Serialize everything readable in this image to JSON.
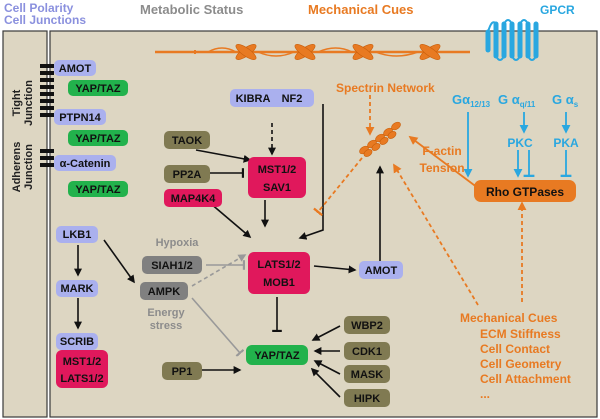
{
  "header": {
    "cell_polarity": "Cell Polarity",
    "cell_junctions": "Cell Junctions",
    "metabolic_status": "Metabolic Status",
    "mechanical_cues": "Mechanical Cues",
    "gpcr": "GPCR"
  },
  "junctions": {
    "tight_line1": "Tight",
    "tight_line2": "Junction",
    "adherens_line1": "Adherens",
    "adherens_line2": "Junction"
  },
  "nodes": {
    "amot_top": "AMOT",
    "yaptaz_1": "YAP/TAZ",
    "ptpn14": "PTPN14",
    "yaptaz_2": "YAP/TAZ",
    "alpha_catenin": "α-Catenin",
    "yaptaz_3": "YAP/TAZ",
    "lkb1": "LKB1",
    "mark": "MARK",
    "scrib": "SCRIB",
    "mst12_left": "MST1/2",
    "lats12_left": "LATS1/2",
    "taok": "TAOK",
    "kibra": "KIBRA",
    "nf2": "NF2",
    "pp2a": "PP2A",
    "mst12_center": "MST1/2",
    "sav1": "SAV1",
    "map4k4": "MAP4K4",
    "siah12": "SIAH1/2",
    "lats12_center": "LATS1/2",
    "mob1": "MOB1",
    "amot_center": "AMOT",
    "ampk": "AMPK",
    "yaptaz_center": "YAP/TAZ",
    "pp1": "PP1",
    "wbp2": "WBP2",
    "cdk1": "CDK1",
    "mask": "MASK",
    "hipk": "HIPK",
    "pkc": "PKC",
    "pka": "PKA",
    "rho_gtpases": "Rho GTPases"
  },
  "labels": {
    "spectrin_network": "Spectrin Network",
    "factin_line1": "F-actin",
    "factin_line2": "Tension",
    "hypoxia": "Hypoxia",
    "energy_line1": "Energy",
    "energy_line2": "stress",
    "galpha_1213": "Gα",
    "galpha_1213_sub": "12/13",
    "galpha_q11": "G α",
    "galpha_q11_sub": "q/11",
    "galpha_s": "G α",
    "galpha_s_sub": "s"
  },
  "mechanical_list": {
    "title": "Mechanical Cues",
    "items": [
      "ECM Stiffness",
      "Cell Contact",
      "Cell Geometry",
      "Cell Attachment",
      "..."
    ]
  },
  "colors": {
    "background": "#ddd6c2",
    "panel_border": "#3a3a3a",
    "lavender": "#aab0ee",
    "green": "#22b24c",
    "magenta": "#e0185c",
    "olive": "#807a52",
    "gray_node": "#808080",
    "orange": "#e87a22",
    "blue": "#29a7e0",
    "gray_text": "#8c8c8c",
    "polarity_text": "#8a90de"
  }
}
